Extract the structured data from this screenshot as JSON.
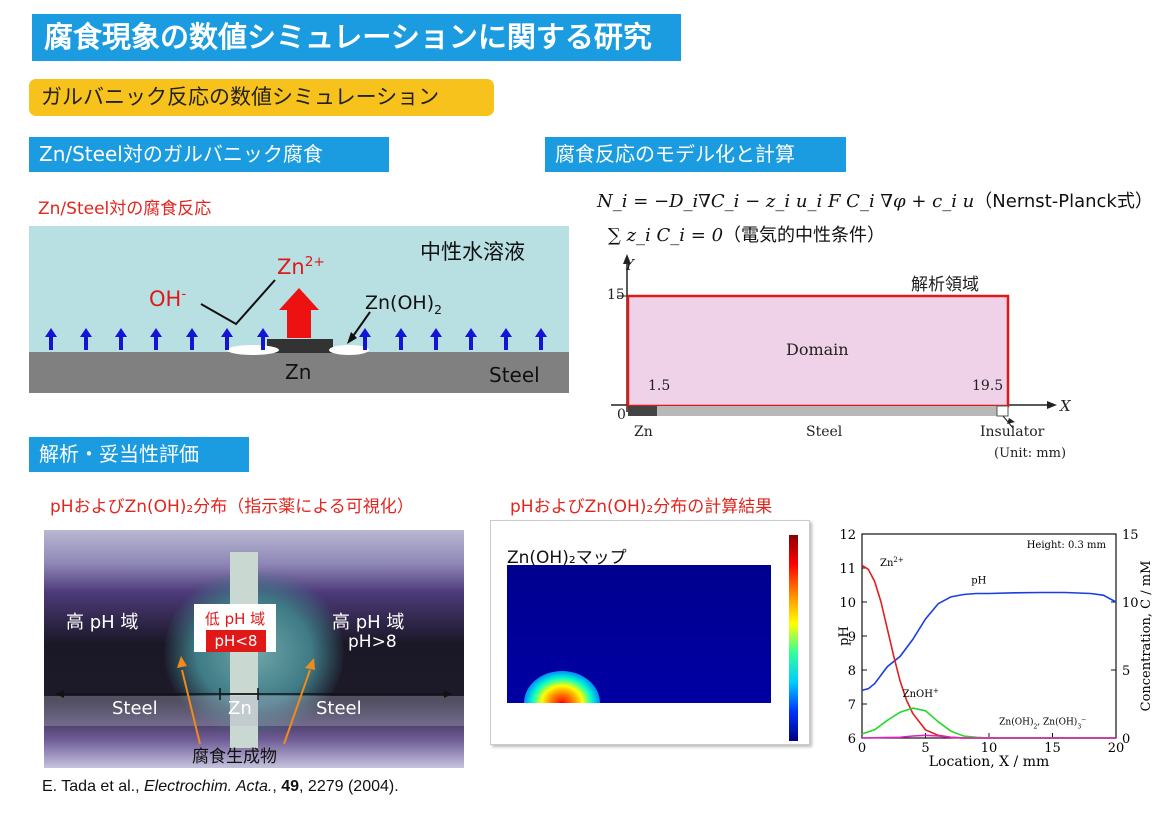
{
  "title": "腐食現象の数値シミュレーションに関する研究",
  "subtitle": "ガルバニック反応の数値シミュレーション",
  "sections": {
    "galvanic": "Zn/Steel対のガルバニック腐食",
    "model": "腐食反応のモデル化と計算",
    "analysis": "解析・妥当性評価"
  },
  "reaction_caption": "Zn/Steel対の腐食反応",
  "schematic": {
    "solution": "中性水溶液",
    "zn_ion": "Zn",
    "zn_ion_charge": "2+",
    "oh": "OH",
    "oh_charge": "-",
    "znoh2": "Zn(OH)",
    "znoh2_sub": "2",
    "zn": "Zn",
    "steel": "Steel"
  },
  "equations": {
    "nernst": "N_i = −D_i∇C_i − z_i u_i F C_i ∇φ + c_i u",
    "nernst_label": "（Nernst-Planck式）",
    "neutral": "∑ z_i C_i = 0",
    "neutral_label": "（電気的中性条件）"
  },
  "domain_diagram": {
    "y_label": "Y",
    "x_label": "X",
    "y15": "15",
    "origin": "0",
    "x15": "1.5",
    "x195": "19.5",
    "region_label": "解析領域",
    "domain": "Domain",
    "zn": "Zn",
    "steel": "Steel",
    "insulator": "Insulator",
    "unit": "(Unit: mm)"
  },
  "photo_caption": "pHおよびZn(OH)₂分布（指示薬による可視化）",
  "calc_caption": "pHおよびZn(OH)₂分布の計算結果",
  "photo": {
    "high_left": "高 pH 域",
    "low": "低 pH 域",
    "low_cond": "pH<8",
    "high_right": "高 pH 域",
    "high_cond": "pH>8",
    "steel_left": "Steel",
    "zn": "Zn",
    "steel_right": "Steel",
    "product": "腐食生成物"
  },
  "map_label": "Zn(OH)₂マップ",
  "chart_data": {
    "type": "line",
    "title": "",
    "annotation": "Height: 0.3 mm",
    "xlabel": "Location, X / mm",
    "ylabel_left": "pH",
    "ylabel_right": "Concentration, C / mM",
    "xlim": [
      0,
      20
    ],
    "ylim_left": [
      6,
      12
    ],
    "ylim_right": [
      0,
      15
    ],
    "x_ticks": [
      "0",
      "5",
      "10",
      "15",
      "20"
    ],
    "y_left_ticks": [
      "6",
      "7",
      "8",
      "9",
      "10",
      "11",
      "12"
    ],
    "y_right_ticks": [
      "0",
      "5",
      "10",
      "15"
    ],
    "series": [
      {
        "name": "pH",
        "axis": "left",
        "color": "#1a3fe0",
        "x": [
          0,
          0.5,
          1,
          1.5,
          2,
          3,
          4,
          5,
          6,
          7,
          8,
          9,
          10,
          12,
          14,
          16,
          18,
          19,
          20
        ],
        "y": [
          7.4,
          7.45,
          7.6,
          7.85,
          8.1,
          8.4,
          8.9,
          9.5,
          9.95,
          10.15,
          10.22,
          10.25,
          10.25,
          10.27,
          10.28,
          10.28,
          10.25,
          10.2,
          10.0
        ]
      },
      {
        "name": "Zn²⁺",
        "axis": "right",
        "color": "#e01f1f",
        "x": [
          0,
          0.5,
          1,
          1.5,
          2,
          2.5,
          3,
          3.5,
          4,
          5,
          6,
          7,
          8,
          10,
          20
        ],
        "y": [
          12.7,
          12.4,
          11.5,
          10.0,
          8.0,
          6.0,
          4.2,
          2.8,
          1.8,
          0.6,
          0.2,
          0.05,
          0.0,
          0.0,
          0.0
        ]
      },
      {
        "name": "ZnOH⁺",
        "axis": "right",
        "color": "#27d62a",
        "x": [
          0,
          1,
          2,
          3,
          4,
          5,
          6,
          7,
          8,
          9,
          10,
          12,
          20
        ],
        "y": [
          0.3,
          0.6,
          1.3,
          1.9,
          2.2,
          2.0,
          1.2,
          0.5,
          0.15,
          0.05,
          0.0,
          0.0,
          0.0
        ]
      },
      {
        "name": "Zn(OH)₂, Zn(OH)₃⁻",
        "axis": "right",
        "color": "#e020c0",
        "x": [
          0,
          3,
          4,
          5,
          6,
          7,
          8,
          10,
          20
        ],
        "y": [
          0.0,
          0.05,
          0.15,
          0.2,
          0.15,
          0.05,
          0.0,
          0.0,
          0.0
        ]
      }
    ],
    "labels": {
      "zn2": "Zn",
      "zn2_charge": "2+",
      "ph": "pH",
      "znoh": "ZnOH",
      "znoh_charge": "+",
      "znoh2": "Zn(OH)",
      "znoh2_mid": "2",
      "znoh2_rest": ", Zn(OH)",
      "znoh3": "3",
      "znoh3_charge": "−"
    }
  },
  "reference": {
    "authors": "E. Tada et al., ",
    "journal": "Electrochim. Acta.",
    "sep": ", ",
    "volume": "49",
    "rest": ", 2279 (2004)."
  }
}
